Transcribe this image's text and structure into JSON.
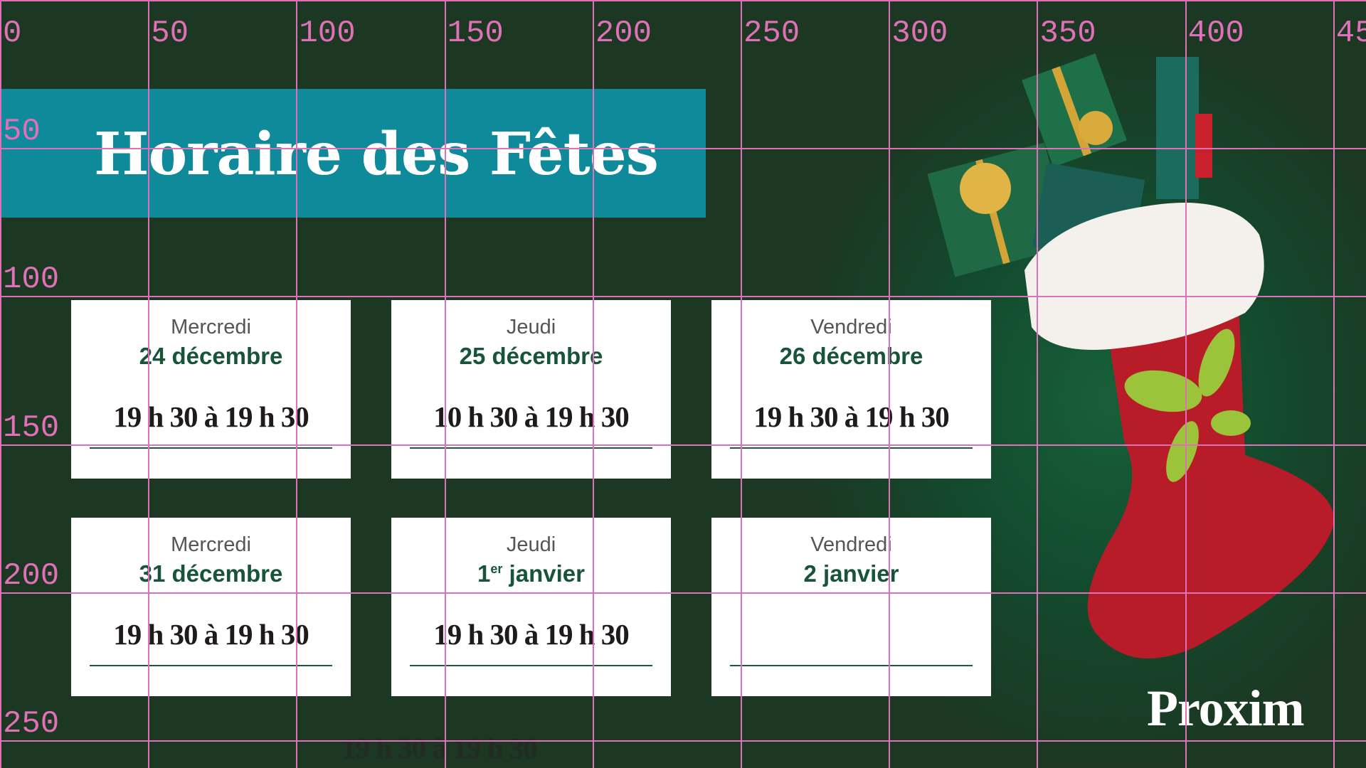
{
  "header": {
    "title": "Horaire des Fêtes"
  },
  "colors": {
    "banner": "#0e8a9a",
    "background": "#1c3722",
    "date_text": "#17543a",
    "grid_overlay": "#e070b8",
    "logo_leaf": "#a8c83a"
  },
  "cards": [
    {
      "day": "Mercredi",
      "date": "24 décembre",
      "hours": "19 h 30 à 19 h 30"
    },
    {
      "day": "Jeudi",
      "date": "25 décembre",
      "hours": "10 h 30 à 19 h 30"
    },
    {
      "day": "Vendredi",
      "date": "26 décembre",
      "hours": "19 h 30 à 19 h 30"
    },
    {
      "day": "Mercredi",
      "date": "31 décembre",
      "hours": "19 h 30 à 19 h 30"
    },
    {
      "day": "Jeudi",
      "date_num": "1",
      "date_sup": "er",
      "date_rest": " janvier",
      "hours": "19 h 30 à 19 h 30"
    },
    {
      "day": "Vendredi",
      "date": "2 janvier",
      "hours": ""
    }
  ],
  "ghost_text": "19 h 30 à 19 h 30",
  "grid": {
    "x_labels": [
      "0",
      "50",
      "100",
      "150",
      "200",
      "250",
      "300",
      "350",
      "400",
      "45"
    ],
    "y_labels": [
      "50",
      "100",
      "150",
      "200",
      "250"
    ]
  },
  "logo": {
    "text": "Proxim",
    "icons": [
      "stocking-illustration",
      "gift-icon"
    ]
  }
}
